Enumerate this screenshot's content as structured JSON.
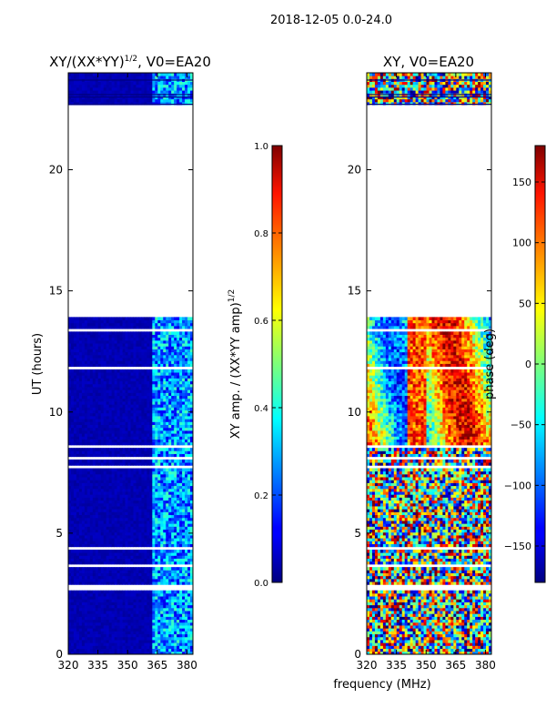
{
  "suptitle": "2018-12-05 0.0-24.0",
  "chart_data": [
    {
      "type": "heatmap",
      "title": "XY/(XX*YY)",
      "title_exponent": "1/2",
      "title_suffix": ", V0=EA20",
      "xlabel": "",
      "ylabel": "UT (hours)",
      "xlim": [
        320,
        383
      ],
      "ylim": [
        0,
        24
      ],
      "xticks": [
        320,
        335,
        350,
        365,
        380
      ],
      "yticks": [
        0,
        5,
        10,
        15,
        20
      ],
      "colorbar": {
        "label": "XY amp. / (XX*YY amp)",
        "label_exponent": "1/2",
        "range": [
          0.0,
          1.0
        ],
        "ticks": [
          "0.0",
          "0.2",
          "0.4",
          "0.6",
          "0.8",
          "1.0"
        ],
        "tick_values": [
          0.0,
          0.2,
          0.4,
          0.6,
          0.8,
          1.0
        ],
        "colormap": "jet"
      },
      "data_coverage_hours": [
        [
          0.0,
          13.8
        ],
        [
          22.6,
          24.0
        ]
      ],
      "dominant_value_below_362MHz": 0.03,
      "typical_value_362_to_383MHz": 0.25
    },
    {
      "type": "heatmap",
      "title": "XY, V0=EA20",
      "xlabel": "frequency (MHz)",
      "ylabel": "",
      "xlim": [
        320,
        383
      ],
      "ylim": [
        0,
        24
      ],
      "xticks": [
        320,
        335,
        350,
        365,
        380
      ],
      "yticks": [
        0,
        5,
        10,
        15,
        20
      ],
      "colorbar": {
        "label": "phase (deg)",
        "range": [
          -180,
          180
        ],
        "ticks": [
          "−150",
          "−100",
          "−50",
          "0",
          "50",
          "100",
          "150"
        ],
        "tick_values": [
          -150,
          -100,
          -50,
          0,
          50,
          100,
          150
        ],
        "colormap": "jet"
      },
      "data_coverage_hours": [
        [
          0.0,
          13.8
        ],
        [
          22.6,
          24.0
        ]
      ]
    }
  ]
}
